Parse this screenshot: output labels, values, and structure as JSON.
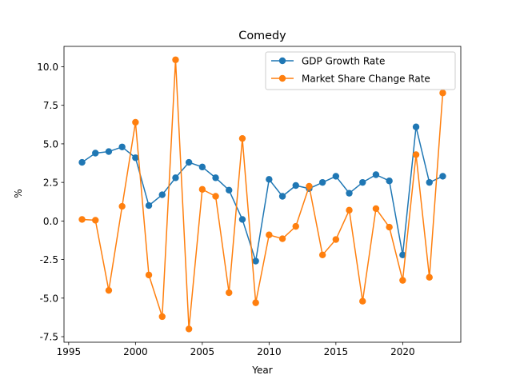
{
  "chart_data": {
    "type": "line",
    "title": "Comedy",
    "xlabel": "Year",
    "ylabel": "%",
    "xlim": [
      1994.65,
      2024.35
    ],
    "ylim": [
      -7.86,
      11.32
    ],
    "x_ticks": [
      1995,
      2000,
      2005,
      2010,
      2015,
      2020
    ],
    "y_ticks": [
      -7.5,
      -5.0,
      -2.5,
      0.0,
      2.5,
      5.0,
      7.5,
      10.0
    ],
    "legend_position": "top-right",
    "x": [
      1996,
      1997,
      1998,
      1999,
      2000,
      2001,
      2002,
      2003,
      2004,
      2005,
      2006,
      2007,
      2008,
      2009,
      2010,
      2011,
      2012,
      2013,
      2014,
      2015,
      2016,
      2017,
      2018,
      2019,
      2020,
      2021,
      2022,
      2023
    ],
    "series": [
      {
        "name": "GDP Growth Rate",
        "color": "#1f77b4",
        "values": [
          3.8,
          4.4,
          4.5,
          4.8,
          4.1,
          1.0,
          1.7,
          2.8,
          3.8,
          3.5,
          2.8,
          2.0,
          0.1,
          -2.6,
          2.7,
          1.6,
          2.3,
          2.1,
          2.5,
          2.9,
          1.8,
          2.5,
          3.0,
          2.6,
          -2.2,
          6.1,
          2.5,
          2.9
        ]
      },
      {
        "name": "Market Share Change Rate",
        "color": "#ff7f0e",
        "values": [
          0.1,
          0.05,
          -4.5,
          0.95,
          6.4,
          -3.5,
          -6.2,
          10.45,
          -7.0,
          2.05,
          1.6,
          -4.65,
          5.35,
          -5.3,
          -0.9,
          -1.15,
          -0.35,
          2.25,
          -2.2,
          -1.2,
          0.7,
          -5.2,
          0.8,
          -0.4,
          -3.85,
          4.3,
          -3.65,
          8.3
        ]
      }
    ]
  }
}
